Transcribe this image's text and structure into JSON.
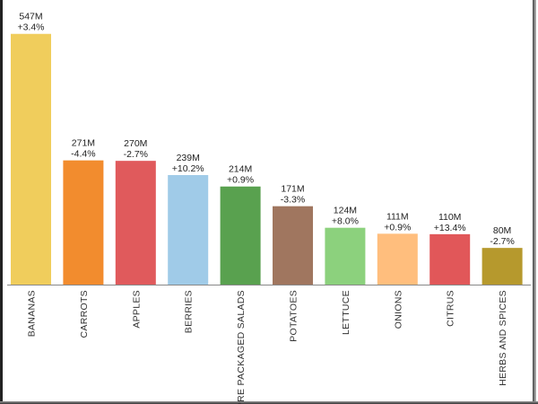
{
  "chart_data": {
    "type": "bar",
    "title": "",
    "xlabel": "",
    "ylabel": "",
    "ylim": [
      0,
      570
    ],
    "grid": false,
    "categories": [
      "BANANAS",
      "CARROTS",
      "APPLES",
      "BERRIES",
      "PRE PACKAGED SALADS",
      "POTATOES",
      "LETTUCE",
      "ONIONS",
      "CITRUS",
      "HERBS AND SPICES"
    ],
    "values": [
      547,
      271,
      270,
      239,
      214,
      171,
      124,
      111,
      110,
      80
    ],
    "value_labels": [
      "547M",
      "271M",
      "270M",
      "239M",
      "214M",
      "171M",
      "124M",
      "111M",
      "110M",
      "80M"
    ],
    "change_labels": [
      "+3.4%",
      "-4.4%",
      "-2.7%",
      "+10.2%",
      "+0.9%",
      "-3.3%",
      "+8.0%",
      "+0.9%",
      "+13.4%",
      "-2.7%"
    ],
    "colors": [
      "#f0cd5c",
      "#f28c2e",
      "#e05a5c",
      "#a0cbe8",
      "#59a14f",
      "#a0765f",
      "#8cd17d",
      "#ffbe7d",
      "#e15759",
      "#b6992d"
    ]
  }
}
